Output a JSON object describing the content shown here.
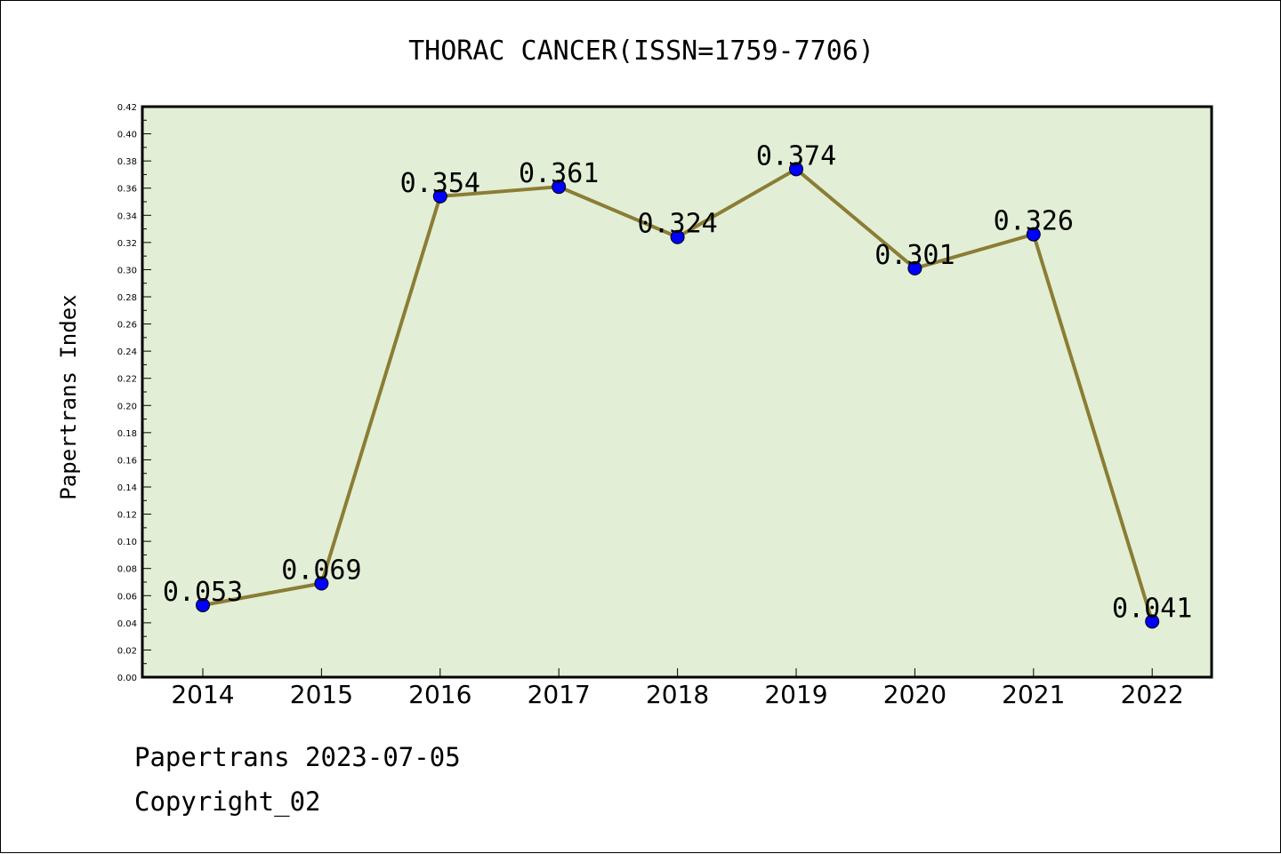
{
  "chart_data": {
    "type": "line",
    "title": "THORAC CANCER(ISSN=1759-7706)",
    "xlabel": "",
    "ylabel": "Papertrans Index",
    "categories": [
      "2014",
      "2015",
      "2016",
      "2017",
      "2018",
      "2019",
      "2020",
      "2021",
      "2022"
    ],
    "values": [
      0.053,
      0.069,
      0.354,
      0.361,
      0.324,
      0.374,
      0.301,
      0.326,
      0.041
    ],
    "data_labels": [
      "0.053",
      "0.069",
      "0.354",
      "0.361",
      "0.324",
      "0.374",
      "0.301",
      "0.326",
      "0.041"
    ],
    "ylim": [
      0,
      0.42
    ],
    "yticks": [
      "0.00",
      "0.02",
      "0.04",
      "0.06",
      "0.08",
      "0.10",
      "0.12",
      "0.14",
      "0.16",
      "0.18",
      "0.20",
      "0.22",
      "0.24",
      "0.26",
      "0.28",
      "0.30",
      "0.32",
      "0.34",
      "0.36",
      "0.38",
      "0.40",
      "0.42"
    ],
    "grid": false,
    "colors": {
      "plot_background": "#e2efd6",
      "line": "#8b7d35",
      "marker": "#0000ff"
    }
  },
  "footer": {
    "line1": "Papertrans 2023-07-05",
    "line2": "Copyright_02"
  }
}
